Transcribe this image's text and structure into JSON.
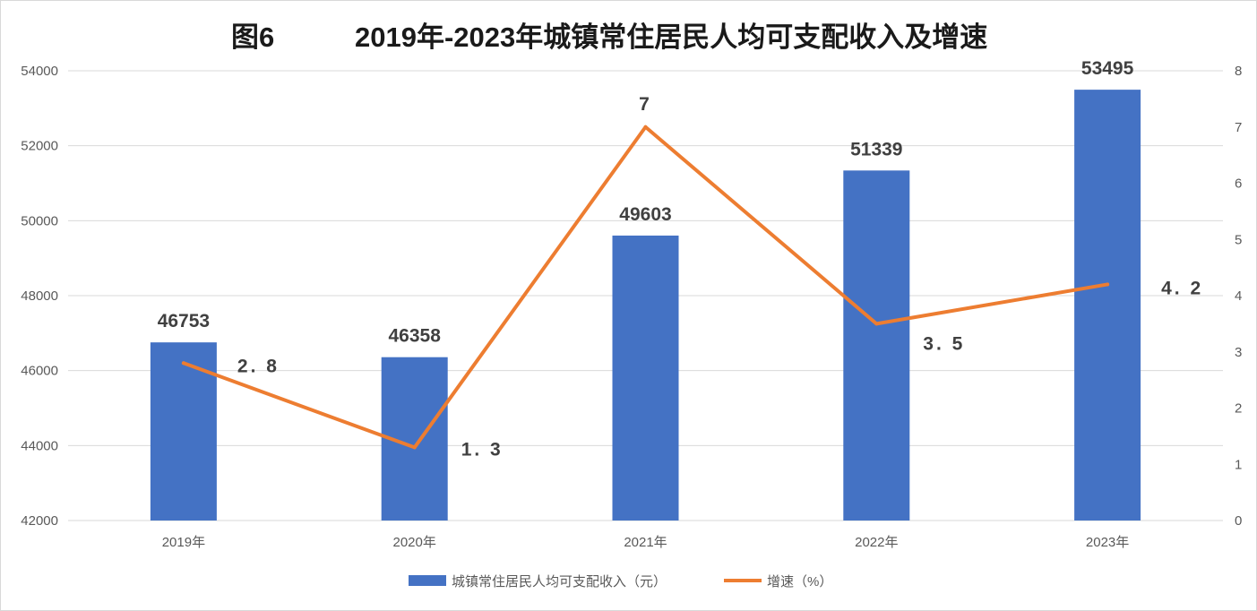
{
  "title": {
    "figure": "图6",
    "text": "2019年-2023年城镇常住居民人均可支配收入及增速"
  },
  "colors": {
    "bar": "#4472c4",
    "line": "#ed7d31",
    "grid": "#d9d9d9"
  },
  "legend": {
    "bar_label": "城镇常住居民人均可支配收入（元）",
    "line_label": "增速（%）"
  },
  "chart_data": {
    "type": "bar",
    "categories": [
      "2019年",
      "2020年",
      "2021年",
      "2022年",
      "2023年"
    ],
    "series": [
      {
        "name": "城镇常住居民人均可支配收入（元）",
        "type": "bar",
        "axis": "left",
        "values": [
          46753,
          46358,
          49603,
          51339,
          53495
        ],
        "labels": [
          "46753",
          "46358",
          "49603",
          "51339",
          "53495"
        ]
      },
      {
        "name": "增速（%）",
        "type": "line",
        "axis": "right",
        "values": [
          2.8,
          1.3,
          7,
          3.5,
          4.2
        ],
        "labels": [
          "2. 8",
          "1. 3",
          "7",
          "3. 5",
          "4. 2"
        ]
      }
    ],
    "y_left": {
      "ylim": [
        42000,
        54000
      ],
      "ticks": [
        "42000",
        "44000",
        "46000",
        "48000",
        "50000",
        "52000",
        "54000"
      ]
    },
    "y_right": {
      "ylim": [
        0,
        8
      ],
      "ticks": [
        "0",
        "1",
        "2",
        "3",
        "4",
        "5",
        "6",
        "7",
        "8"
      ]
    },
    "grid": true,
    "legend_position": "bottom"
  }
}
